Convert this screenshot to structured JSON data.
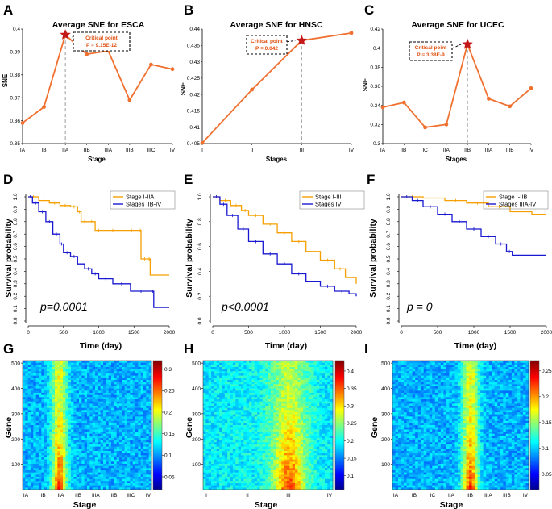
{
  "panel_labels": [
    "A",
    "B",
    "C",
    "D",
    "E",
    "F",
    "G",
    "H",
    "I"
  ],
  "colors": {
    "line": "#f07030",
    "star": "#c41818",
    "km_low": "#f5a000",
    "km_high": "#1818d0"
  },
  "chart_data": [
    {
      "id": "A",
      "type": "line",
      "title": "Average SNE for ESCA",
      "xlabel": "Stage",
      "ylabel": "SNE",
      "categories": [
        "IA",
        "IB",
        "IIA",
        "IIB",
        "IIIA",
        "IIIB",
        "IIIC",
        "IV"
      ],
      "values": [
        0.359,
        0.366,
        0.3975,
        0.389,
        0.3905,
        0.369,
        0.3845,
        0.3825
      ],
      "ylim": [
        0.35,
        0.4
      ],
      "yticks": [
        "0.35",
        "0.36",
        "0.37",
        "0.38",
        "0.39",
        "0.4"
      ],
      "critical_index": 2,
      "critical_label": "Critical point",
      "critical_p": "P = 9.15E-12"
    },
    {
      "id": "B",
      "type": "line",
      "title": "Average SNE for HNSC",
      "xlabel": "Stages",
      "ylabel": "SNE",
      "categories": [
        "I",
        "II",
        "III",
        "IV"
      ],
      "values": [
        0.4052,
        0.4215,
        0.4365,
        0.4388
      ],
      "ylim": [
        0.405,
        0.44
      ],
      "yticks": [
        "0.405",
        "0.41",
        "0.415",
        "0.42",
        "0.425",
        "0.43",
        "0.435",
        "0.44"
      ],
      "critical_index": 2,
      "critical_label": "Critical point",
      "critical_p": "P = 0.042"
    },
    {
      "id": "C",
      "type": "line",
      "title": "Average SNE for UCEC",
      "xlabel": "Stages",
      "ylabel": "SNE",
      "categories": [
        "IA",
        "IB",
        "IC",
        "IIA",
        "IIB",
        "IIIA",
        "IIIB",
        "IV"
      ],
      "values": [
        0.338,
        0.343,
        0.317,
        0.32,
        0.404,
        0.347,
        0.339,
        0.358
      ],
      "ylim": [
        0.3,
        0.42
      ],
      "yticks": [
        "0.3",
        "0.32",
        "0.34",
        "0.36",
        "0.38",
        "0.4",
        "0.42"
      ],
      "critical_index": 4,
      "critical_label": "Critical point",
      "critical_p": "P = 3.38E-9"
    },
    {
      "id": "D",
      "type": "line",
      "subtype": "kaplan-meier",
      "xlabel": "Time (day)",
      "ylabel": "Survival probability",
      "xlim": [
        0,
        2000
      ],
      "ylim": [
        0,
        1
      ],
      "xticks": [
        "0",
        "500",
        "1000",
        "1500",
        "2000"
      ],
      "yticks": [
        "0.0",
        "0.1",
        "0.2",
        "0.3",
        "0.4",
        "0.5",
        "0.6",
        "0.7",
        "0.8",
        "0.9",
        "1.0"
      ],
      "pvalue_label": "p=0.0001",
      "series": [
        {
          "name": "Stage I-IIA",
          "color": "#f5a000",
          "points": [
            [
              0,
              1.0
            ],
            [
              150,
              0.97
            ],
            [
              300,
              0.95
            ],
            [
              450,
              0.93
            ],
            [
              600,
              0.92
            ],
            [
              700,
              0.88
            ],
            [
              750,
              0.8
            ],
            [
              850,
              0.8
            ],
            [
              950,
              0.73
            ],
            [
              1050,
              0.73
            ],
            [
              1350,
              0.73
            ],
            [
              1580,
              0.73
            ],
            [
              1600,
              0.5
            ],
            [
              1700,
              0.5
            ],
            [
              1730,
              0.37
            ],
            [
              2000,
              0.37
            ]
          ]
        },
        {
          "name": "Stages IIB-IV",
          "color": "#1818d0",
          "points": [
            [
              0,
              1.0
            ],
            [
              60,
              0.95
            ],
            [
              150,
              0.88
            ],
            [
              250,
              0.8
            ],
            [
              350,
              0.7
            ],
            [
              450,
              0.62
            ],
            [
              500,
              0.55
            ],
            [
              600,
              0.52
            ],
            [
              700,
              0.46
            ],
            [
              800,
              0.42
            ],
            [
              900,
              0.38
            ],
            [
              1000,
              0.34
            ],
            [
              1200,
              0.3
            ],
            [
              1450,
              0.24
            ],
            [
              1750,
              0.24
            ],
            [
              1780,
              0.11
            ],
            [
              2000,
              0.11
            ]
          ]
        }
      ]
    },
    {
      "id": "E",
      "type": "line",
      "subtype": "kaplan-meier",
      "xlabel": "Time (day)",
      "ylabel": "Survival probability",
      "xlim": [
        0,
        2000
      ],
      "ylim": [
        0,
        1
      ],
      "xticks": [
        "0",
        "500",
        "1000",
        "1500",
        "2000"
      ],
      "yticks": [
        "0.0",
        "0.2",
        "0.4",
        "0.6",
        "0.8",
        "1.0"
      ],
      "pvalue_label": "p<0.0001",
      "series": [
        {
          "name": "Stage I-III",
          "color": "#f5a000",
          "points": [
            [
              0,
              1.0
            ],
            [
              100,
              0.97
            ],
            [
              250,
              0.93
            ],
            [
              400,
              0.89
            ],
            [
              500,
              0.85
            ],
            [
              700,
              0.78
            ],
            [
              900,
              0.71
            ],
            [
              1100,
              0.64
            ],
            [
              1300,
              0.56
            ],
            [
              1500,
              0.49
            ],
            [
              1700,
              0.42
            ],
            [
              1850,
              0.35
            ],
            [
              2000,
              0.3
            ]
          ]
        },
        {
          "name": "Stages IV",
          "color": "#1818d0",
          "points": [
            [
              0,
              1.0
            ],
            [
              100,
              0.94
            ],
            [
              200,
              0.85
            ],
            [
              350,
              0.74
            ],
            [
              500,
              0.64
            ],
            [
              700,
              0.54
            ],
            [
              900,
              0.46
            ],
            [
              1100,
              0.38
            ],
            [
              1300,
              0.32
            ],
            [
              1500,
              0.28
            ],
            [
              1700,
              0.24
            ],
            [
              1900,
              0.22
            ],
            [
              2000,
              0.2
            ]
          ]
        }
      ]
    },
    {
      "id": "F",
      "type": "line",
      "subtype": "kaplan-meier",
      "xlabel": "Time (day)",
      "ylabel": "Survival probability",
      "xlim": [
        0,
        2000
      ],
      "ylim": [
        0,
        1
      ],
      "xticks": [
        "0",
        "500",
        "1000",
        "1500",
        "2000"
      ],
      "yticks": [
        "0.0",
        "0.1",
        "0.2",
        "0.3",
        "0.4",
        "0.5",
        "0.6",
        "0.7",
        "0.8",
        "0.9",
        "1.0"
      ],
      "pvalue_label": "p = 0",
      "series": [
        {
          "name": "Stage I-IIB",
          "color": "#f5a000",
          "points": [
            [
              0,
              1.0
            ],
            [
              300,
              0.99
            ],
            [
              600,
              0.97
            ],
            [
              900,
              0.95
            ],
            [
              1200,
              0.92
            ],
            [
              1500,
              0.88
            ],
            [
              1800,
              0.86
            ],
            [
              2000,
              0.86
            ]
          ]
        },
        {
          "name": "Stages IIIA-IV",
          "color": "#1818d0",
          "points": [
            [
              0,
              1.0
            ],
            [
              150,
              0.97
            ],
            [
              300,
              0.92
            ],
            [
              500,
              0.86
            ],
            [
              700,
              0.8
            ],
            [
              900,
              0.74
            ],
            [
              1100,
              0.68
            ],
            [
              1300,
              0.62
            ],
            [
              1450,
              0.56
            ],
            [
              1530,
              0.53
            ],
            [
              2000,
              0.53
            ]
          ]
        }
      ]
    },
    {
      "id": "G",
      "type": "heatmap",
      "xlabel": "Stage",
      "ylabel": "Gene",
      "xcategories": [
        "IA",
        "IB",
        "IIA",
        "IIB",
        "IIIA",
        "IIIB",
        "IIIC",
        "IV"
      ],
      "yticks": [
        "100",
        "200",
        "300",
        "400",
        "500"
      ],
      "ylim": [
        0,
        510
      ],
      "hot_column": 2,
      "colorbar_ticks": [
        "0.05",
        "0.1",
        "0.15",
        "0.2",
        "0.25",
        "0.3"
      ],
      "colorbar_range": [
        0.02,
        0.32
      ]
    },
    {
      "id": "H",
      "type": "heatmap",
      "xlabel": "Stage",
      "ylabel": "Gene",
      "xcategories": [
        "I",
        "II",
        "III",
        "IV"
      ],
      "yticks": [
        "100",
        "200",
        "300",
        "400",
        "500"
      ],
      "ylim": [
        0,
        510
      ],
      "hot_column": 2,
      "colorbar_ticks": [
        "0.1",
        "0.15",
        "0.2",
        "0.25",
        "0.3",
        "0.35",
        "0.4"
      ],
      "colorbar_range": [
        0.06,
        0.43
      ]
    },
    {
      "id": "I",
      "type": "heatmap",
      "xlabel": "Stage",
      "ylabel": "Gene",
      "xcategories": [
        "IA",
        "IB",
        "IC",
        "IIA",
        "IIB",
        "IIIA",
        "IIIB",
        "IV"
      ],
      "yticks": [
        "100",
        "200",
        "300",
        "400",
        "500"
      ],
      "ylim": [
        0,
        510
      ],
      "hot_column": 4,
      "colorbar_ticks": [
        "0.05",
        "0.1",
        "0.15",
        "0.2",
        "0.25"
      ],
      "colorbar_range": [
        0.02,
        0.27
      ]
    }
  ]
}
